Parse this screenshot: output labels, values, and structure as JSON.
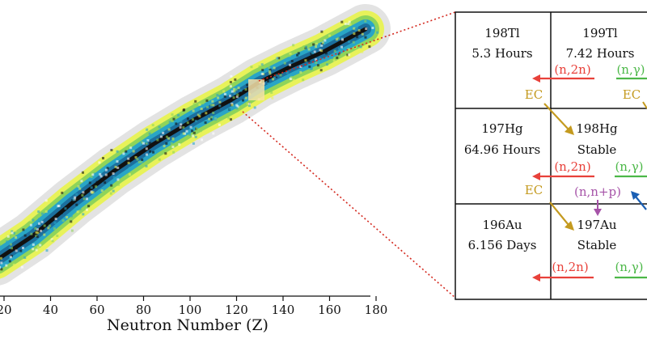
{
  "axis": {
    "x_ticks": [
      "20",
      "40",
      "60",
      "80",
      "100",
      "120",
      "140",
      "160",
      "180"
    ],
    "x_title": "Neutron Number (Z)"
  },
  "colors": {
    "red": "#e8413a",
    "green": "#4cb848",
    "gold": "#c49a1f",
    "purple": "#a653a8",
    "blue": "#1a5fb4",
    "dotted": "#d42a20"
  },
  "grid": {
    "cells": [
      {
        "name": "198Tl",
        "sub": "5.3 Hours"
      },
      {
        "name": "199Tl",
        "sub": "7.42 Hours"
      },
      {
        "name": "197Hg",
        "sub": "64.96 Hours"
      },
      {
        "name": "198Hg",
        "sub": "Stable"
      },
      {
        "name": "196Au",
        "sub": "6.156 Days"
      },
      {
        "name": "197Au",
        "sub": "Stable"
      }
    ],
    "labels": {
      "n2n_a": "(n,2n)",
      "ng_a": "(n,γ)",
      "ec_a": "EC",
      "ec_b": "EC",
      "n2n_b": "(n,2n)",
      "ng_b": "(n,γ)",
      "ec_c": "EC",
      "nnp": "(n,n+p)",
      "n2n_c": "(n,2n)",
      "ng_c": "(n,γ)"
    }
  }
}
